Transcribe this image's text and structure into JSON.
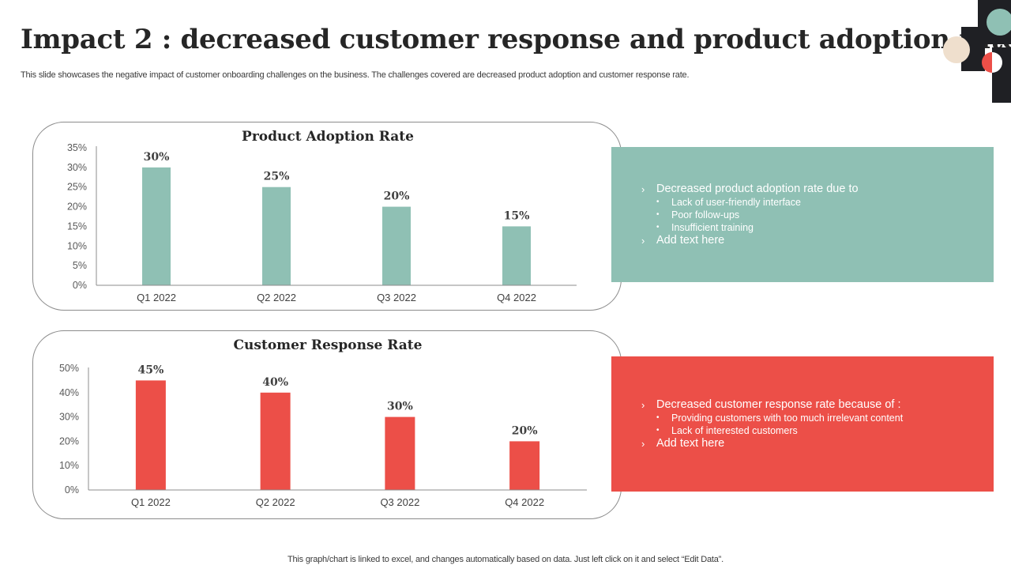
{
  "slide": {
    "title": "Impact 2 : decreased customer response and product adoption rate",
    "subtitle": "This slide showcases the negative impact of customer onboarding challenges on the business. The challenges covered are decreased product adoption and customer response rate.",
    "footer": "This graph/chart is linked to excel,  and changes automatically based on data. Just left click on it and select “Edit Data”."
  },
  "colors": {
    "teal": "#8fc0b4",
    "red": "#ec4f48",
    "beige": "#efdfcd",
    "dark": "#1f2024"
  },
  "chart_data": [
    {
      "type": "bar",
      "title": "Product Adoption Rate",
      "categories": [
        "Q1 2022",
        "Q2 2022",
        "Q3 2022",
        "Q4 2022"
      ],
      "values": [
        30,
        25,
        20,
        15
      ],
      "data_labels": [
        "30%",
        "25%",
        "20%",
        "15%"
      ],
      "yticks": [
        "0%",
        "5%",
        "10%",
        "15%",
        "20%",
        "25%",
        "30%",
        "35%"
      ],
      "ylim": [
        0,
        35
      ],
      "xlabel": "",
      "ylabel": "",
      "grid": false,
      "legend": "none",
      "color": "#8fc0b4"
    },
    {
      "type": "bar",
      "title": "Customer Response Rate",
      "categories": [
        "Q1 2022",
        "Q2 2022",
        "Q3 2022",
        "Q4 2022"
      ],
      "values": [
        45,
        40,
        30,
        20
      ],
      "data_labels": [
        "45%",
        "40%",
        "30%",
        "20%"
      ],
      "yticks": [
        "0%",
        "10%",
        "20%",
        "30%",
        "40%",
        "50%"
      ],
      "ylim": [
        0,
        50
      ],
      "xlabel": "",
      "ylabel": "",
      "grid": false,
      "legend": "none",
      "color": "#ec4f48"
    }
  ],
  "panels": [
    {
      "heading": "Decreased product adoption rate due to",
      "bullets": [
        "Lack of user-friendly  interface",
        "Poor follow-ups",
        "Insufficient  training"
      ],
      "extra": "Add text here",
      "chevron": "›",
      "dot": "•"
    },
    {
      "heading": "Decreased customer response rate because of :",
      "bullets": [
        "Providing  customers with too much irrelevant  content",
        "Lack of interested customers"
      ],
      "extra": "Add text here",
      "chevron": "›",
      "dot": "•"
    }
  ]
}
